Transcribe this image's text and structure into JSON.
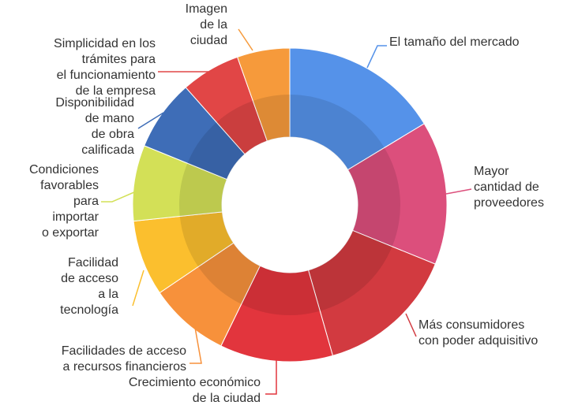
{
  "chart_data": {
    "type": "donut",
    "categories": [
      "El tamaño del mercado",
      "Mayor\ncantidad de\nproveedores",
      "Más consumidores\ncon poder adquisitivo",
      "Crecimiento económico\nde la ciudad",
      "Facilidades de acceso\na recursos financieros",
      "Facilidad\nde acceso\na la\ntecnología",
      "Condiciones\nfavorables\npara\nimportar\no exportar",
      "Disponibilidad\nde mano\nde obra\ncalificada",
      "Simplicidad en los\ntrámites para\nel funcionamiento\nde la empresa",
      "Imagen\nde la\nciudad"
    ],
    "values": [
      16.3,
      14.8,
      14.4,
      11.6,
      8.3,
      7.8,
      7.8,
      7.3,
      6.1,
      5.4
    ],
    "colors": [
      "#5592e9",
      "#dc4f7c",
      "#d23a40",
      "#e2353d",
      "#f7913b",
      "#fbbf2e",
      "#d3e057",
      "#3e6db7",
      "#e14646",
      "#f69a3b"
    ]
  }
}
